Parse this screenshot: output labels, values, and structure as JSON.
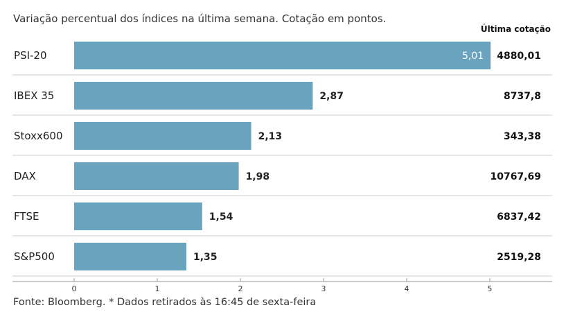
{
  "subtitle": "Variação percentual dos índices na última semana. Cotação em pontos.",
  "column_header": "Última cotação",
  "source": "Fonte: Bloomberg.  * Dados retirados às 16:45 de sexta-feira",
  "colors": {
    "bar": "#6aa3bd",
    "grid": "#cccccc",
    "axis": "#999999"
  },
  "chart_data": {
    "type": "bar",
    "orientation": "horizontal",
    "categories": [
      "PSI-20",
      "IBEX 35",
      "Stoxx600",
      "DAX",
      "FTSE",
      "S&P500"
    ],
    "values": [
      5.01,
      2.87,
      2.13,
      1.98,
      1.54,
      1.35
    ],
    "value_labels": [
      "5,01",
      "2,87",
      "2,13",
      "1,98",
      "1,54",
      "1,35"
    ],
    "last_quote": [
      "4880,01",
      "8737,8",
      "343,38",
      "10767,69",
      "6837,42",
      "2519,28"
    ],
    "xlim": [
      0,
      5.75
    ],
    "xticks": [
      0,
      1,
      2,
      3,
      4,
      5
    ],
    "xtick_labels": [
      "0",
      "1",
      "2",
      "3",
      "4",
      "5"
    ]
  }
}
